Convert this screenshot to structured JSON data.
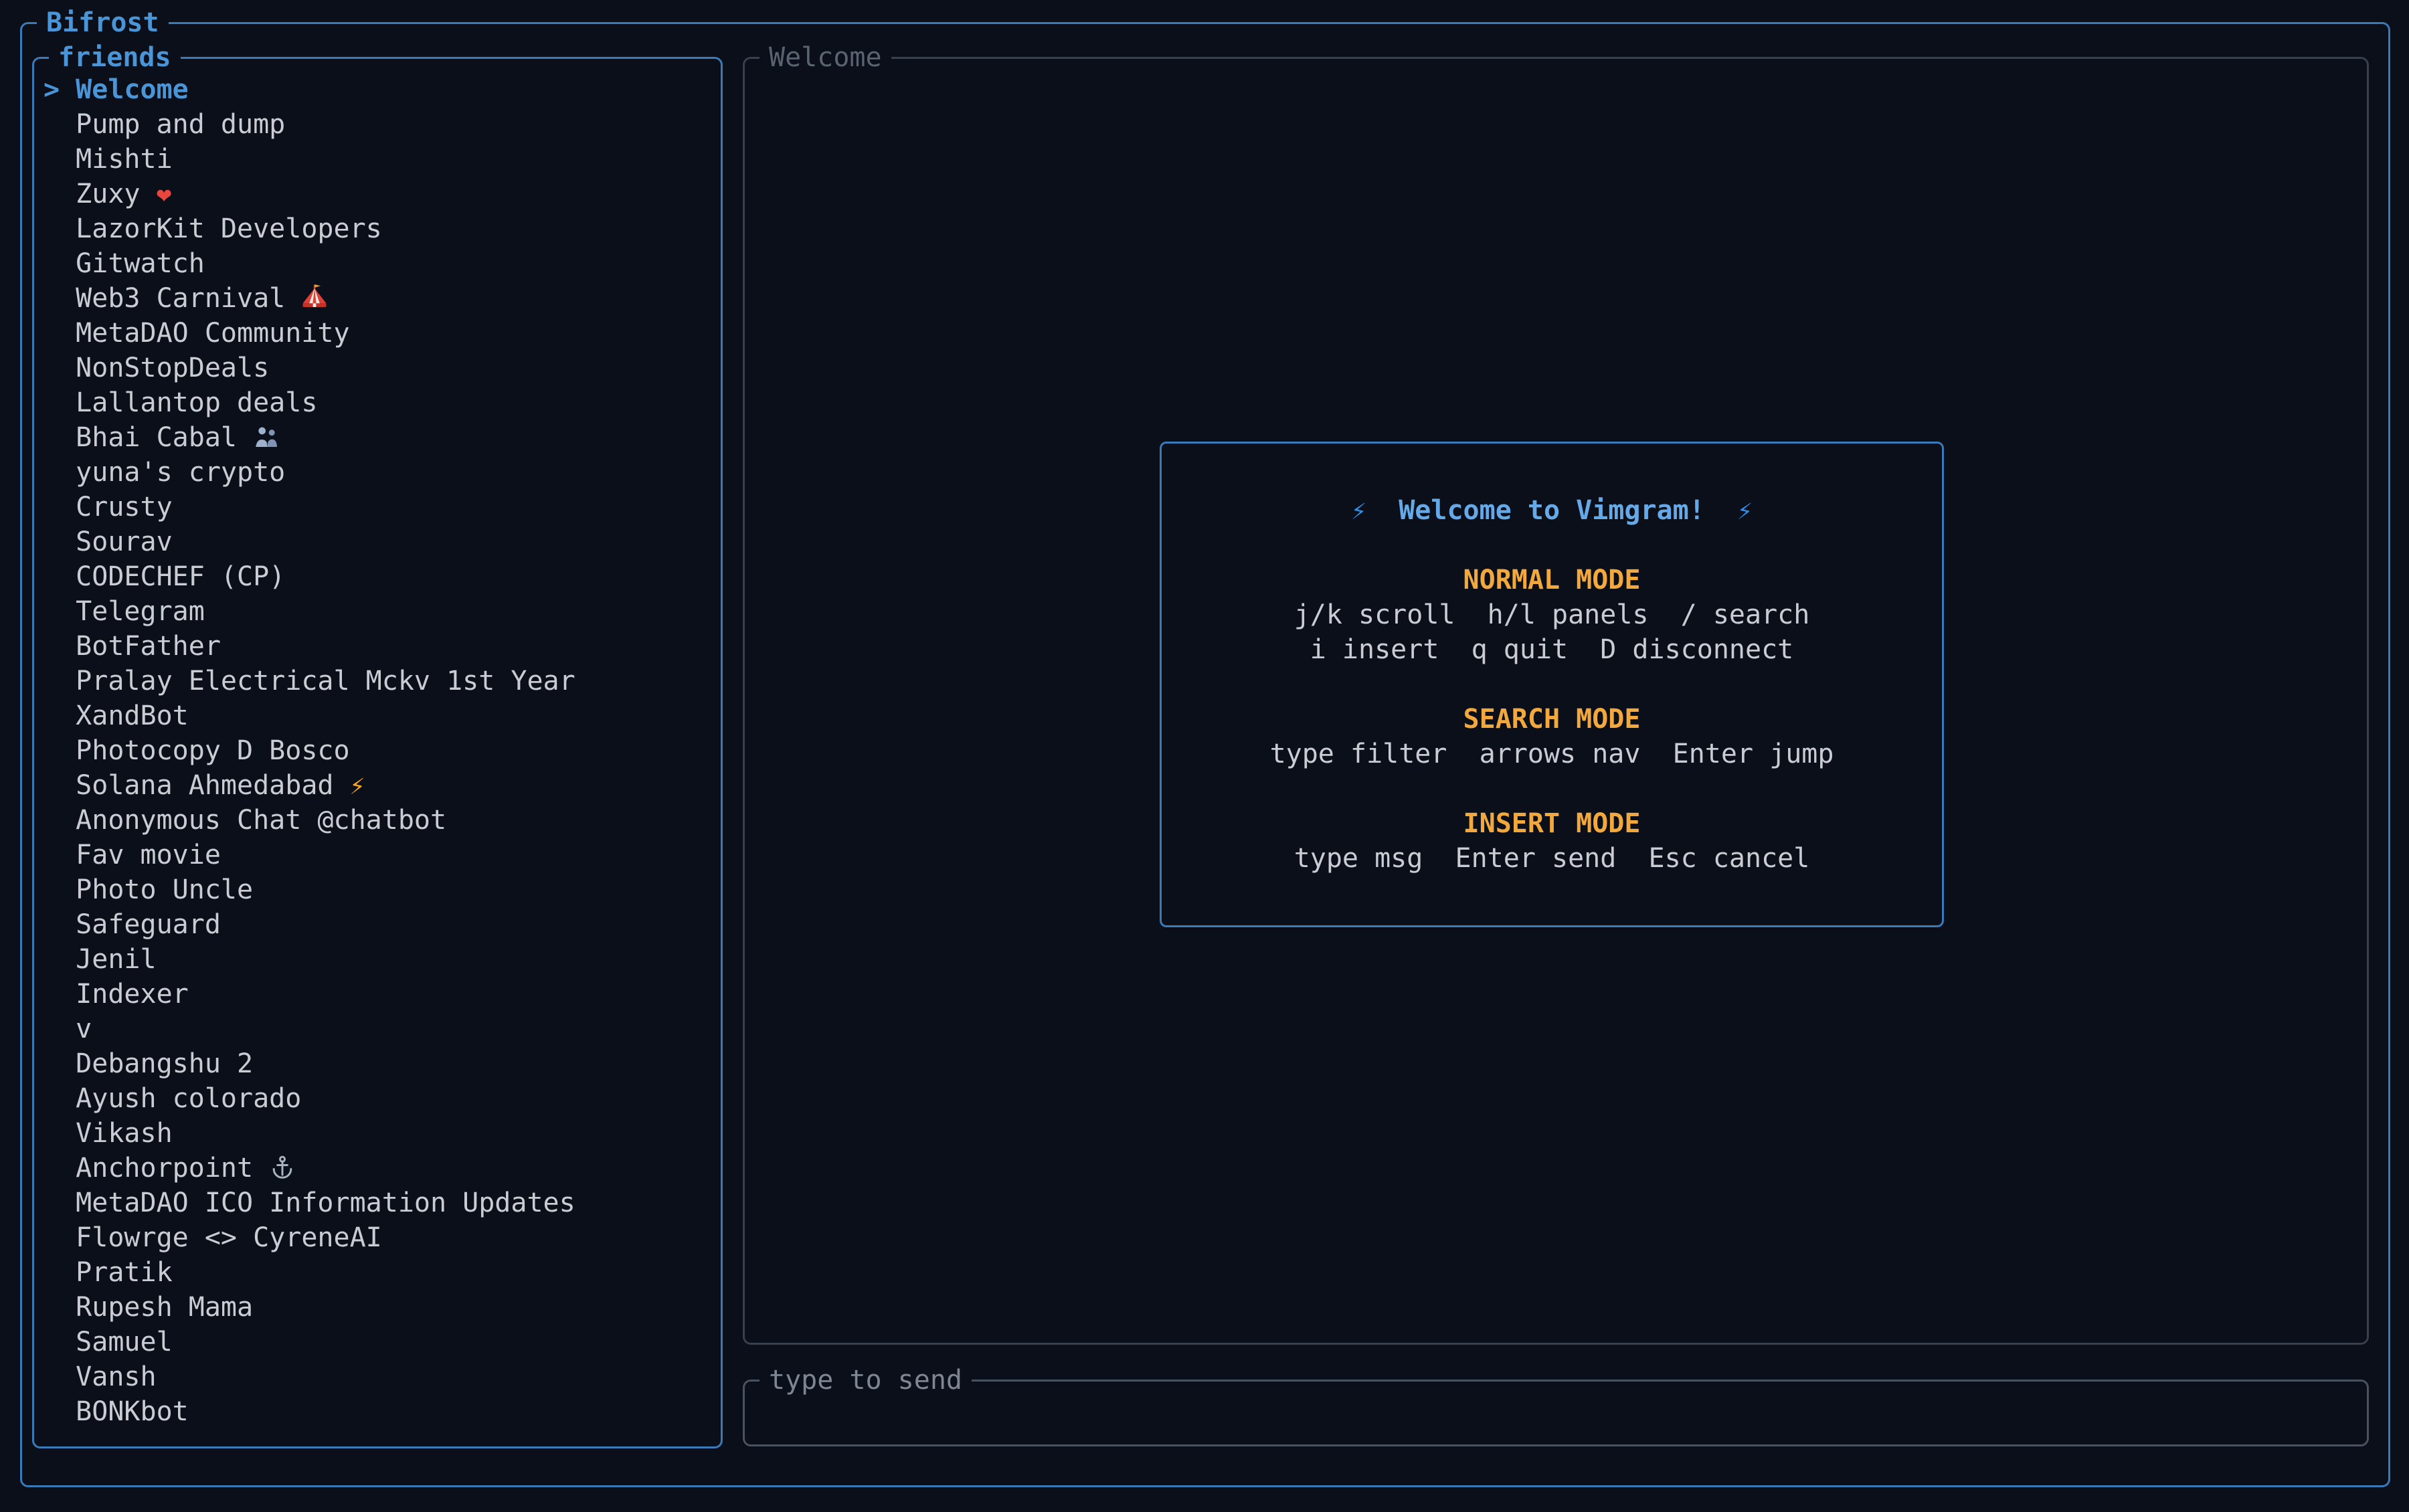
{
  "app": {
    "title": "Bifrost"
  },
  "sidebar": {
    "title": "friends",
    "selected_index": 0,
    "selection_prefix": ">",
    "items": [
      {
        "label": "Welcome"
      },
      {
        "label": "Pump and dump"
      },
      {
        "label": "Mishti"
      },
      {
        "label": "Zuxy",
        "emoji": "red-heart"
      },
      {
        "label": "LazorKit Developers"
      },
      {
        "label": "Gitwatch"
      },
      {
        "label": "Web3 Carnival",
        "emoji": "circus-tent"
      },
      {
        "label": "MetaDAO Community"
      },
      {
        "label": "NonStopDeals"
      },
      {
        "label": "Lallantop deals"
      },
      {
        "label": "Bhai Cabal",
        "emoji": "people-hugging"
      },
      {
        "label": "yuna's crypto"
      },
      {
        "label": "Crusty"
      },
      {
        "label": "Sourav"
      },
      {
        "label": "CODECHEF (CP)"
      },
      {
        "label": "Telegram"
      },
      {
        "label": "BotFather"
      },
      {
        "label": "Pralay Electrical Mckv 1st Year"
      },
      {
        "label": "XandBot"
      },
      {
        "label": "Photocopy D Bosco"
      },
      {
        "label": "Solana Ahmedabad",
        "emoji": "high-voltage"
      },
      {
        "label": "Anonymous Chat @chatbot"
      },
      {
        "label": "Fav movie"
      },
      {
        "label": "Photo Uncle"
      },
      {
        "label": "Safeguard"
      },
      {
        "label": "Jenil"
      },
      {
        "label": "Indexer"
      },
      {
        "label": "v"
      },
      {
        "label": "Debangshu 2"
      },
      {
        "label": "Ayush colorado"
      },
      {
        "label": "Vikash"
      },
      {
        "label": "Anchorpoint",
        "emoji": "anchor"
      },
      {
        "label": "MetaDAO ICO Information Updates"
      },
      {
        "label": "Flowrge <> CyreneAI"
      },
      {
        "label": "Pratik"
      },
      {
        "label": "Rupesh Mama"
      },
      {
        "label": "Samuel"
      },
      {
        "label": "Vansh"
      },
      {
        "label": "BONKbot"
      }
    ]
  },
  "messages_panel": {
    "title": "Welcome"
  },
  "welcome_card": {
    "title": "Welcome to Vimgram!",
    "title_icon": "high-voltage-blue",
    "sections": [
      {
        "heading": "NORMAL MODE",
        "lines": [
          "j/k scroll  h/l panels  / search",
          "i insert  q quit  D disconnect"
        ]
      },
      {
        "heading": "SEARCH MODE",
        "lines": [
          "type filter  arrows nav  Enter jump"
        ]
      },
      {
        "heading": "INSERT MODE",
        "lines": [
          "type msg  Enter send  Esc cancel"
        ]
      }
    ]
  },
  "input_panel": {
    "title": "type to send",
    "value": ""
  },
  "colors": {
    "background": "#0a0f19",
    "accent_blue": "#4a94d8",
    "focused_border_blue": "#3a7ab8",
    "selected_blue": "#4a94d8",
    "card_title_blue": "#66a9e9",
    "bolt_blue": "#2f8ce4",
    "heading_orange": "#f2a83c",
    "text_gray": "#c9ccd2",
    "dim_border_gray": "#38404e",
    "dim_border_gray2": "#4a5260",
    "dim_title_gray": "#5a6370",
    "dim_title_gray2": "#7e8694",
    "heart_red": "#e8463e",
    "bolt_orange": "#f5a623",
    "anchor_gray": "#a9b2bd"
  }
}
